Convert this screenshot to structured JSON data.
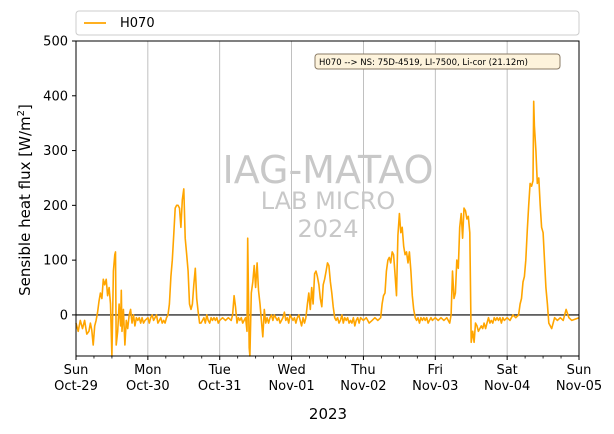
{
  "chart_data": {
    "type": "line",
    "xlabel": "2023",
    "ylabel_text": "Sensible heat flux [W/m",
    "ylabel_sup": "2",
    "ylabel_end": "]",
    "ylim": [
      -75,
      500
    ],
    "xlim": [
      0,
      7
    ],
    "yticks": [
      0,
      100,
      200,
      300,
      400,
      500
    ],
    "xticks": [
      {
        "x": 0,
        "day": "Sun",
        "date": "Oct-29"
      },
      {
        "x": 1,
        "day": "Mon",
        "date": "Oct-30"
      },
      {
        "x": 2,
        "day": "Tue",
        "date": "Oct-31"
      },
      {
        "x": 3,
        "day": "Wed",
        "date": "Nov-01"
      },
      {
        "x": 4,
        "day": "Thu",
        "date": "Nov-02"
      },
      {
        "x": 5,
        "day": "Fri",
        "date": "Nov-03"
      },
      {
        "x": 6,
        "day": "Sat",
        "date": "Nov-04"
      },
      {
        "x": 7,
        "day": "Sun",
        "date": "Nov-05"
      }
    ],
    "grid": "vertical",
    "zero_line": true,
    "legend": {
      "placement": "top",
      "label": "H070"
    },
    "annotation": "H070 --> NS: 75D-4519, LI-7500, Li-cor (21.12m)",
    "watermark": {
      "line1": "IAG-MATAO",
      "line2": "LAB MICRO",
      "line3": "2024"
    },
    "colors": {
      "series": "#ffa500",
      "grid": "#b0b0b0",
      "annotation_bg": "#fdf3dc",
      "annotation_border": "#8a7b66"
    },
    "series": [
      {
        "name": "H070",
        "points": [
          [
            0.0,
            -15
          ],
          [
            0.03,
            -30
          ],
          [
            0.06,
            -10
          ],
          [
            0.09,
            -25
          ],
          [
            0.12,
            -10
          ],
          [
            0.15,
            -35
          ],
          [
            0.18,
            -30
          ],
          [
            0.2,
            -15
          ],
          [
            0.22,
            -28
          ],
          [
            0.24,
            -55
          ],
          [
            0.26,
            -20
          ],
          [
            0.28,
            -10
          ],
          [
            0.3,
            5
          ],
          [
            0.32,
            25
          ],
          [
            0.34,
            40
          ],
          [
            0.36,
            30
          ],
          [
            0.38,
            65
          ],
          [
            0.4,
            55
          ],
          [
            0.42,
            65
          ],
          [
            0.44,
            35
          ],
          [
            0.46,
            50
          ],
          [
            0.48,
            20
          ],
          [
            0.5,
            -75
          ],
          [
            0.52,
            80
          ],
          [
            0.54,
            110
          ],
          [
            0.55,
            115
          ],
          [
            0.56,
            -55
          ],
          [
            0.58,
            -30
          ],
          [
            0.6,
            20
          ],
          [
            0.62,
            -20
          ],
          [
            0.63,
            45
          ],
          [
            0.64,
            -30
          ],
          [
            0.66,
            10
          ],
          [
            0.68,
            -55
          ],
          [
            0.7,
            -10
          ],
          [
            0.72,
            -25
          ],
          [
            0.74,
            0
          ],
          [
            0.76,
            10
          ],
          [
            0.78,
            -15
          ],
          [
            0.8,
            0
          ],
          [
            0.82,
            -20
          ],
          [
            0.84,
            -5
          ],
          [
            0.86,
            -10
          ],
          [
            0.88,
            -5
          ],
          [
            0.9,
            -15
          ],
          [
            0.92,
            -5
          ],
          [
            0.94,
            -15
          ],
          [
            0.96,
            -10
          ],
          [
            1.0,
            -5
          ],
          [
            1.02,
            -15
          ],
          [
            1.04,
            -5
          ],
          [
            1.06,
            0
          ],
          [
            1.08,
            -10
          ],
          [
            1.1,
            -5
          ],
          [
            1.12,
            0
          ],
          [
            1.14,
            -15
          ],
          [
            1.16,
            -10
          ],
          [
            1.18,
            -5
          ],
          [
            1.2,
            -15
          ],
          [
            1.22,
            -10
          ],
          [
            1.24,
            -15
          ],
          [
            1.26,
            -5
          ],
          [
            1.28,
            0
          ],
          [
            1.3,
            20
          ],
          [
            1.32,
            70
          ],
          [
            1.34,
            100
          ],
          [
            1.36,
            145
          ],
          [
            1.38,
            195
          ],
          [
            1.4,
            200
          ],
          [
            1.42,
            200
          ],
          [
            1.44,
            195
          ],
          [
            1.46,
            160
          ],
          [
            1.48,
            210
          ],
          [
            1.5,
            230
          ],
          [
            1.52,
            140
          ],
          [
            1.54,
            110
          ],
          [
            1.56,
            80
          ],
          [
            1.58,
            20
          ],
          [
            1.6,
            10
          ],
          [
            1.62,
            20
          ],
          [
            1.64,
            55
          ],
          [
            1.66,
            85
          ],
          [
            1.68,
            30
          ],
          [
            1.7,
            5
          ],
          [
            1.72,
            -15
          ],
          [
            1.74,
            -15
          ],
          [
            1.76,
            -10
          ],
          [
            1.78,
            -5
          ],
          [
            1.8,
            -15
          ],
          [
            1.82,
            0
          ],
          [
            1.84,
            -10
          ],
          [
            1.86,
            -15
          ],
          [
            1.88,
            -5
          ],
          [
            1.9,
            -10
          ],
          [
            1.92,
            -5
          ],
          [
            1.94,
            -10
          ],
          [
            1.96,
            -5
          ],
          [
            1.98,
            -15
          ],
          [
            2.0,
            -10
          ],
          [
            2.04,
            -5
          ],
          [
            2.08,
            -10
          ],
          [
            2.12,
            -5
          ],
          [
            2.16,
            -10
          ],
          [
            2.18,
            0
          ],
          [
            2.2,
            35
          ],
          [
            2.22,
            15
          ],
          [
            2.24,
            -15
          ],
          [
            2.26,
            -5
          ],
          [
            2.28,
            -10
          ],
          [
            2.3,
            -5
          ],
          [
            2.32,
            -15
          ],
          [
            2.34,
            -10
          ],
          [
            2.36,
            -5
          ],
          [
            2.38,
            -30
          ],
          [
            2.39,
            140
          ],
          [
            2.41,
            -60
          ],
          [
            2.42,
            -75
          ],
          [
            2.44,
            40
          ],
          [
            2.46,
            60
          ],
          [
            2.48,
            90
          ],
          [
            2.5,
            50
          ],
          [
            2.52,
            95
          ],
          [
            2.54,
            45
          ],
          [
            2.56,
            20
          ],
          [
            2.58,
            -10
          ],
          [
            2.6,
            -40
          ],
          [
            2.62,
            10
          ],
          [
            2.64,
            -15
          ],
          [
            2.66,
            -5
          ],
          [
            2.68,
            -15
          ],
          [
            2.7,
            -5
          ],
          [
            2.72,
            0
          ],
          [
            2.74,
            -10
          ],
          [
            2.76,
            0
          ],
          [
            2.78,
            -5
          ],
          [
            2.8,
            -10
          ],
          [
            2.82,
            -5
          ],
          [
            2.84,
            -15
          ],
          [
            2.86,
            -10
          ],
          [
            2.88,
            -5
          ],
          [
            2.9,
            5
          ],
          [
            2.92,
            -10
          ],
          [
            2.94,
            -5
          ],
          [
            2.96,
            -15
          ],
          [
            2.98,
            0
          ],
          [
            3.0,
            -5
          ],
          [
            3.02,
            -10
          ],
          [
            3.04,
            -5
          ],
          [
            3.06,
            -15
          ],
          [
            3.08,
            -5
          ],
          [
            3.1,
            0
          ],
          [
            3.12,
            -10
          ],
          [
            3.14,
            -20
          ],
          [
            3.16,
            -5
          ],
          [
            3.18,
            -15
          ],
          [
            3.2,
            -5
          ],
          [
            3.22,
            20
          ],
          [
            3.24,
            40
          ],
          [
            3.26,
            10
          ],
          [
            3.28,
            50
          ],
          [
            3.3,
            20
          ],
          [
            3.32,
            75
          ],
          [
            3.34,
            80
          ],
          [
            3.36,
            70
          ],
          [
            3.38,
            55
          ],
          [
            3.4,
            30
          ],
          [
            3.42,
            15
          ],
          [
            3.44,
            55
          ],
          [
            3.46,
            65
          ],
          [
            3.48,
            80
          ],
          [
            3.5,
            95
          ],
          [
            3.52,
            90
          ],
          [
            3.54,
            60
          ],
          [
            3.56,
            40
          ],
          [
            3.58,
            15
          ],
          [
            3.6,
            -5
          ],
          [
            3.62,
            -10
          ],
          [
            3.64,
            -5
          ],
          [
            3.66,
            -15
          ],
          [
            3.68,
            -10
          ],
          [
            3.7,
            0
          ],
          [
            3.72,
            -15
          ],
          [
            3.74,
            -5
          ],
          [
            3.76,
            -10
          ],
          [
            3.78,
            -5
          ],
          [
            3.8,
            -15
          ],
          [
            3.82,
            -10
          ],
          [
            3.84,
            -15
          ],
          [
            3.86,
            -5
          ],
          [
            3.88,
            -20
          ],
          [
            3.9,
            -10
          ],
          [
            3.92,
            -5
          ],
          [
            3.94,
            -15
          ],
          [
            3.96,
            -5
          ],
          [
            4.0,
            -10
          ],
          [
            4.04,
            -5
          ],
          [
            4.08,
            -15
          ],
          [
            4.12,
            -10
          ],
          [
            4.16,
            -5
          ],
          [
            4.2,
            -10
          ],
          [
            4.24,
            -5
          ],
          [
            4.26,
            20
          ],
          [
            4.28,
            35
          ],
          [
            4.3,
            40
          ],
          [
            4.32,
            80
          ],
          [
            4.34,
            100
          ],
          [
            4.36,
            105
          ],
          [
            4.38,
            95
          ],
          [
            4.4,
            115
          ],
          [
            4.42,
            110
          ],
          [
            4.44,
            75
          ],
          [
            4.46,
            35
          ],
          [
            4.48,
            145
          ],
          [
            4.5,
            185
          ],
          [
            4.52,
            150
          ],
          [
            4.54,
            160
          ],
          [
            4.56,
            125
          ],
          [
            4.58,
            110
          ],
          [
            4.6,
            115
          ],
          [
            4.62,
            95
          ],
          [
            4.64,
            115
          ],
          [
            4.66,
            80
          ],
          [
            4.68,
            35
          ],
          [
            4.7,
            10
          ],
          [
            4.72,
            -5
          ],
          [
            4.74,
            -10
          ],
          [
            4.76,
            -5
          ],
          [
            4.78,
            -15
          ],
          [
            4.8,
            -5
          ],
          [
            4.82,
            -10
          ],
          [
            4.84,
            -5
          ],
          [
            4.86,
            -10
          ],
          [
            4.88,
            -5
          ],
          [
            4.9,
            -15
          ],
          [
            4.92,
            -10
          ],
          [
            4.94,
            -5
          ],
          [
            4.96,
            -10
          ],
          [
            5.0,
            -5
          ],
          [
            5.04,
            -10
          ],
          [
            5.08,
            -5
          ],
          [
            5.12,
            -10
          ],
          [
            5.16,
            -5
          ],
          [
            5.2,
            -15
          ],
          [
            5.22,
            0
          ],
          [
            5.24,
            80
          ],
          [
            5.26,
            30
          ],
          [
            5.28,
            40
          ],
          [
            5.3,
            100
          ],
          [
            5.32,
            85
          ],
          [
            5.34,
            160
          ],
          [
            5.36,
            185
          ],
          [
            5.38,
            140
          ],
          [
            5.4,
            195
          ],
          [
            5.42,
            190
          ],
          [
            5.44,
            175
          ],
          [
            5.46,
            180
          ],
          [
            5.48,
            150
          ],
          [
            5.5,
            -50
          ],
          [
            5.52,
            -30
          ],
          [
            5.54,
            -50
          ],
          [
            5.56,
            -15
          ],
          [
            5.58,
            -20
          ],
          [
            5.6,
            -30
          ],
          [
            5.62,
            -25
          ],
          [
            5.64,
            -20
          ],
          [
            5.66,
            -25
          ],
          [
            5.68,
            -15
          ],
          [
            5.7,
            -25
          ],
          [
            5.72,
            -15
          ],
          [
            5.74,
            -5
          ],
          [
            5.76,
            -15
          ],
          [
            5.78,
            -10
          ],
          [
            5.8,
            -15
          ],
          [
            5.82,
            -5
          ],
          [
            5.84,
            -10
          ],
          [
            5.86,
            -5
          ],
          [
            5.88,
            -10
          ],
          [
            5.9,
            -5
          ],
          [
            5.92,
            -15
          ],
          [
            5.94,
            -5
          ],
          [
            5.96,
            -10
          ],
          [
            6.0,
            -5
          ],
          [
            6.04,
            -10
          ],
          [
            6.08,
            0
          ],
          [
            6.12,
            -5
          ],
          [
            6.16,
            0
          ],
          [
            6.18,
            20
          ],
          [
            6.2,
            30
          ],
          [
            6.22,
            60
          ],
          [
            6.24,
            70
          ],
          [
            6.26,
            100
          ],
          [
            6.28,
            155
          ],
          [
            6.3,
            200
          ],
          [
            6.32,
            240
          ],
          [
            6.34,
            235
          ],
          [
            6.36,
            245
          ],
          [
            6.37,
            390
          ],
          [
            6.38,
            345
          ],
          [
            6.4,
            300
          ],
          [
            6.42,
            240
          ],
          [
            6.44,
            250
          ],
          [
            6.46,
            200
          ],
          [
            6.48,
            160
          ],
          [
            6.5,
            150
          ],
          [
            6.52,
            100
          ],
          [
            6.54,
            50
          ],
          [
            6.56,
            20
          ],
          [
            6.58,
            -15
          ],
          [
            6.62,
            -25
          ],
          [
            6.66,
            -5
          ],
          [
            6.7,
            -10
          ],
          [
            6.74,
            -5
          ],
          [
            6.78,
            -10
          ],
          [
            6.82,
            10
          ],
          [
            6.86,
            -5
          ],
          [
            6.9,
            -10
          ],
          [
            7.0,
            -5
          ]
        ]
      }
    ]
  }
}
